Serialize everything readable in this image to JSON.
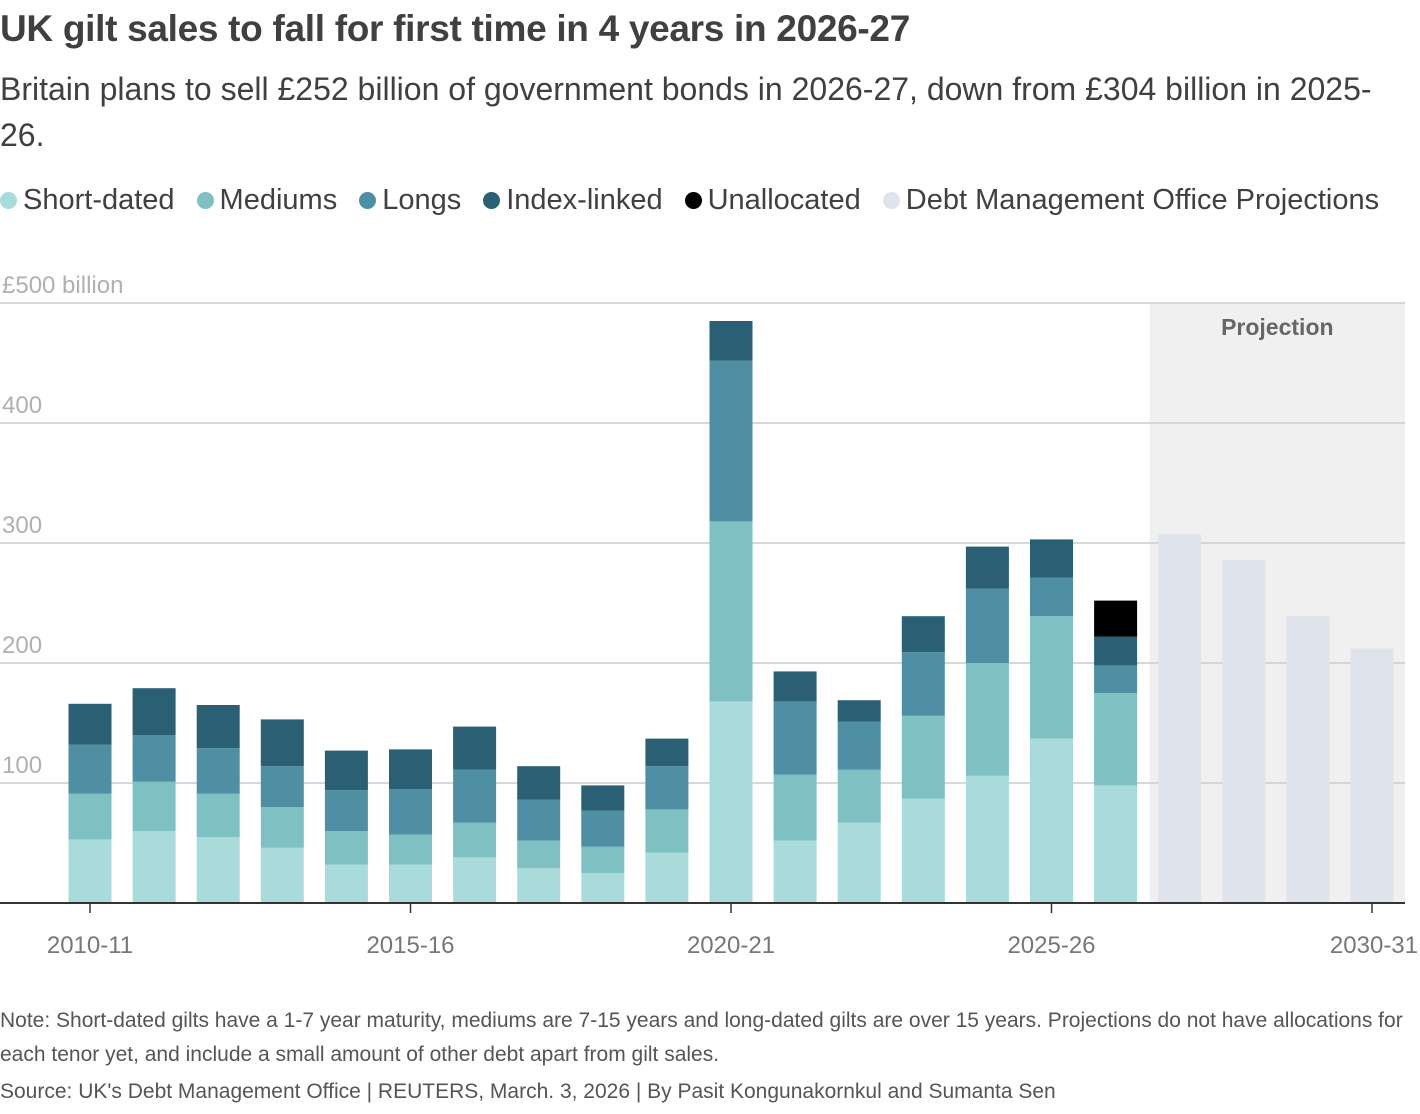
{
  "header": {
    "title": "UK gilt sales to fall for first time in 4 years in 2026-27",
    "subtitle": "Britain plans to sell £252 billion of government bonds in 2026-27, down from £304 billion in 2025-26."
  },
  "legend": [
    {
      "label": "Short-dated",
      "color": "#a8dbd9"
    },
    {
      "label": "Mediums",
      "color": "#7fc0c3"
    },
    {
      "label": "Longs",
      "color": "#4e8fa4"
    },
    {
      "label": "Index-linked",
      "color": "#2b5f74"
    },
    {
      "label": "Unallocated",
      "color": "#000000"
    },
    {
      "label": "Debt Management Office Projections",
      "color": "#dfe3ec"
    }
  ],
  "chart_data": {
    "type": "bar",
    "stacked": true,
    "categories": [
      "2010-11",
      "2011-12",
      "2012-13",
      "2013-14",
      "2014-15",
      "2015-16",
      "2016-17",
      "2017-18",
      "2018-19",
      "2019-20",
      "2020-21",
      "2021-22",
      "2022-23",
      "2023-24",
      "2024-25",
      "2025-26",
      "2026-27",
      "2027-28",
      "2028-29",
      "2029-30",
      "2030-31"
    ],
    "x_tick_labels": [
      "2010-11",
      "2015-16",
      "2020-21",
      "2025-26",
      "2030-31"
    ],
    "y_tick_labels": [
      "£500 billion",
      "400",
      "300",
      "200",
      "100"
    ],
    "ylim": [
      0,
      500
    ],
    "grid": true,
    "projection_label": "Projection",
    "series": [
      {
        "name": "Short-dated",
        "color": "#a8dbd9",
        "values": [
          53,
          60,
          55,
          46,
          32,
          32,
          38,
          29,
          25,
          42,
          168,
          52,
          67,
          87,
          106,
          137,
          98,
          null,
          null,
          null,
          null
        ]
      },
      {
        "name": "Mediums",
        "color": "#7fc0c3",
        "values": [
          38,
          41,
          36,
          34,
          28,
          25,
          29,
          23,
          22,
          36,
          150,
          55,
          44,
          69,
          94,
          102,
          77,
          null,
          null,
          null,
          null
        ]
      },
      {
        "name": "Longs",
        "color": "#4e8fa4",
        "values": [
          41,
          39,
          38,
          34,
          34,
          38,
          44,
          34,
          30,
          36,
          134,
          61,
          40,
          53,
          62,
          32,
          23,
          null,
          null,
          null,
          null
        ]
      },
      {
        "name": "Index-linked",
        "color": "#2b5f74",
        "values": [
          34,
          39,
          36,
          39,
          33,
          33,
          36,
          28,
          21,
          23,
          33,
          25,
          18,
          30,
          35,
          32,
          24,
          null,
          null,
          null,
          null
        ]
      },
      {
        "name": "Unallocated",
        "color": "#000000",
        "values": [
          null,
          null,
          null,
          null,
          null,
          null,
          null,
          null,
          null,
          null,
          null,
          null,
          null,
          null,
          null,
          null,
          30,
          null,
          null,
          null,
          null
        ]
      },
      {
        "name": "Debt Management Office Projections",
        "color": "#dfe3ec",
        "values": [
          null,
          null,
          null,
          null,
          null,
          null,
          null,
          null,
          null,
          null,
          null,
          null,
          null,
          null,
          null,
          null,
          null,
          307,
          286,
          239,
          212
        ]
      }
    ]
  },
  "footer": {
    "note": "Note: Short-dated gilts have a 1-7 year maturity, mediums are 7-15 years and long-dated gilts are over 15 years. Projections do not have allocations for each tenor yet, and include a small amount of other debt apart from gilt sales.",
    "source": "Source: UK's Debt Management Office | REUTERS, March. 3, 2026 | By Pasit Kongunakornkul and Sumanta Sen"
  }
}
